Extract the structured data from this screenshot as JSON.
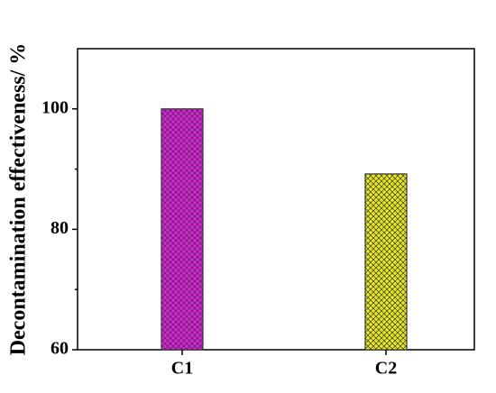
{
  "chart_data": {
    "type": "bar",
    "ylabel": "Decontamination effectiveness/ %",
    "categories": [
      "C1",
      "C2"
    ],
    "values": [
      100,
      89.2
    ],
    "colors": [
      "#e020e0",
      "#e8e820"
    ],
    "ylim": [
      60,
      110
    ],
    "yticks": [
      60,
      80,
      100
    ],
    "minor_yticks": [
      70,
      90
    ],
    "grid": false
  }
}
